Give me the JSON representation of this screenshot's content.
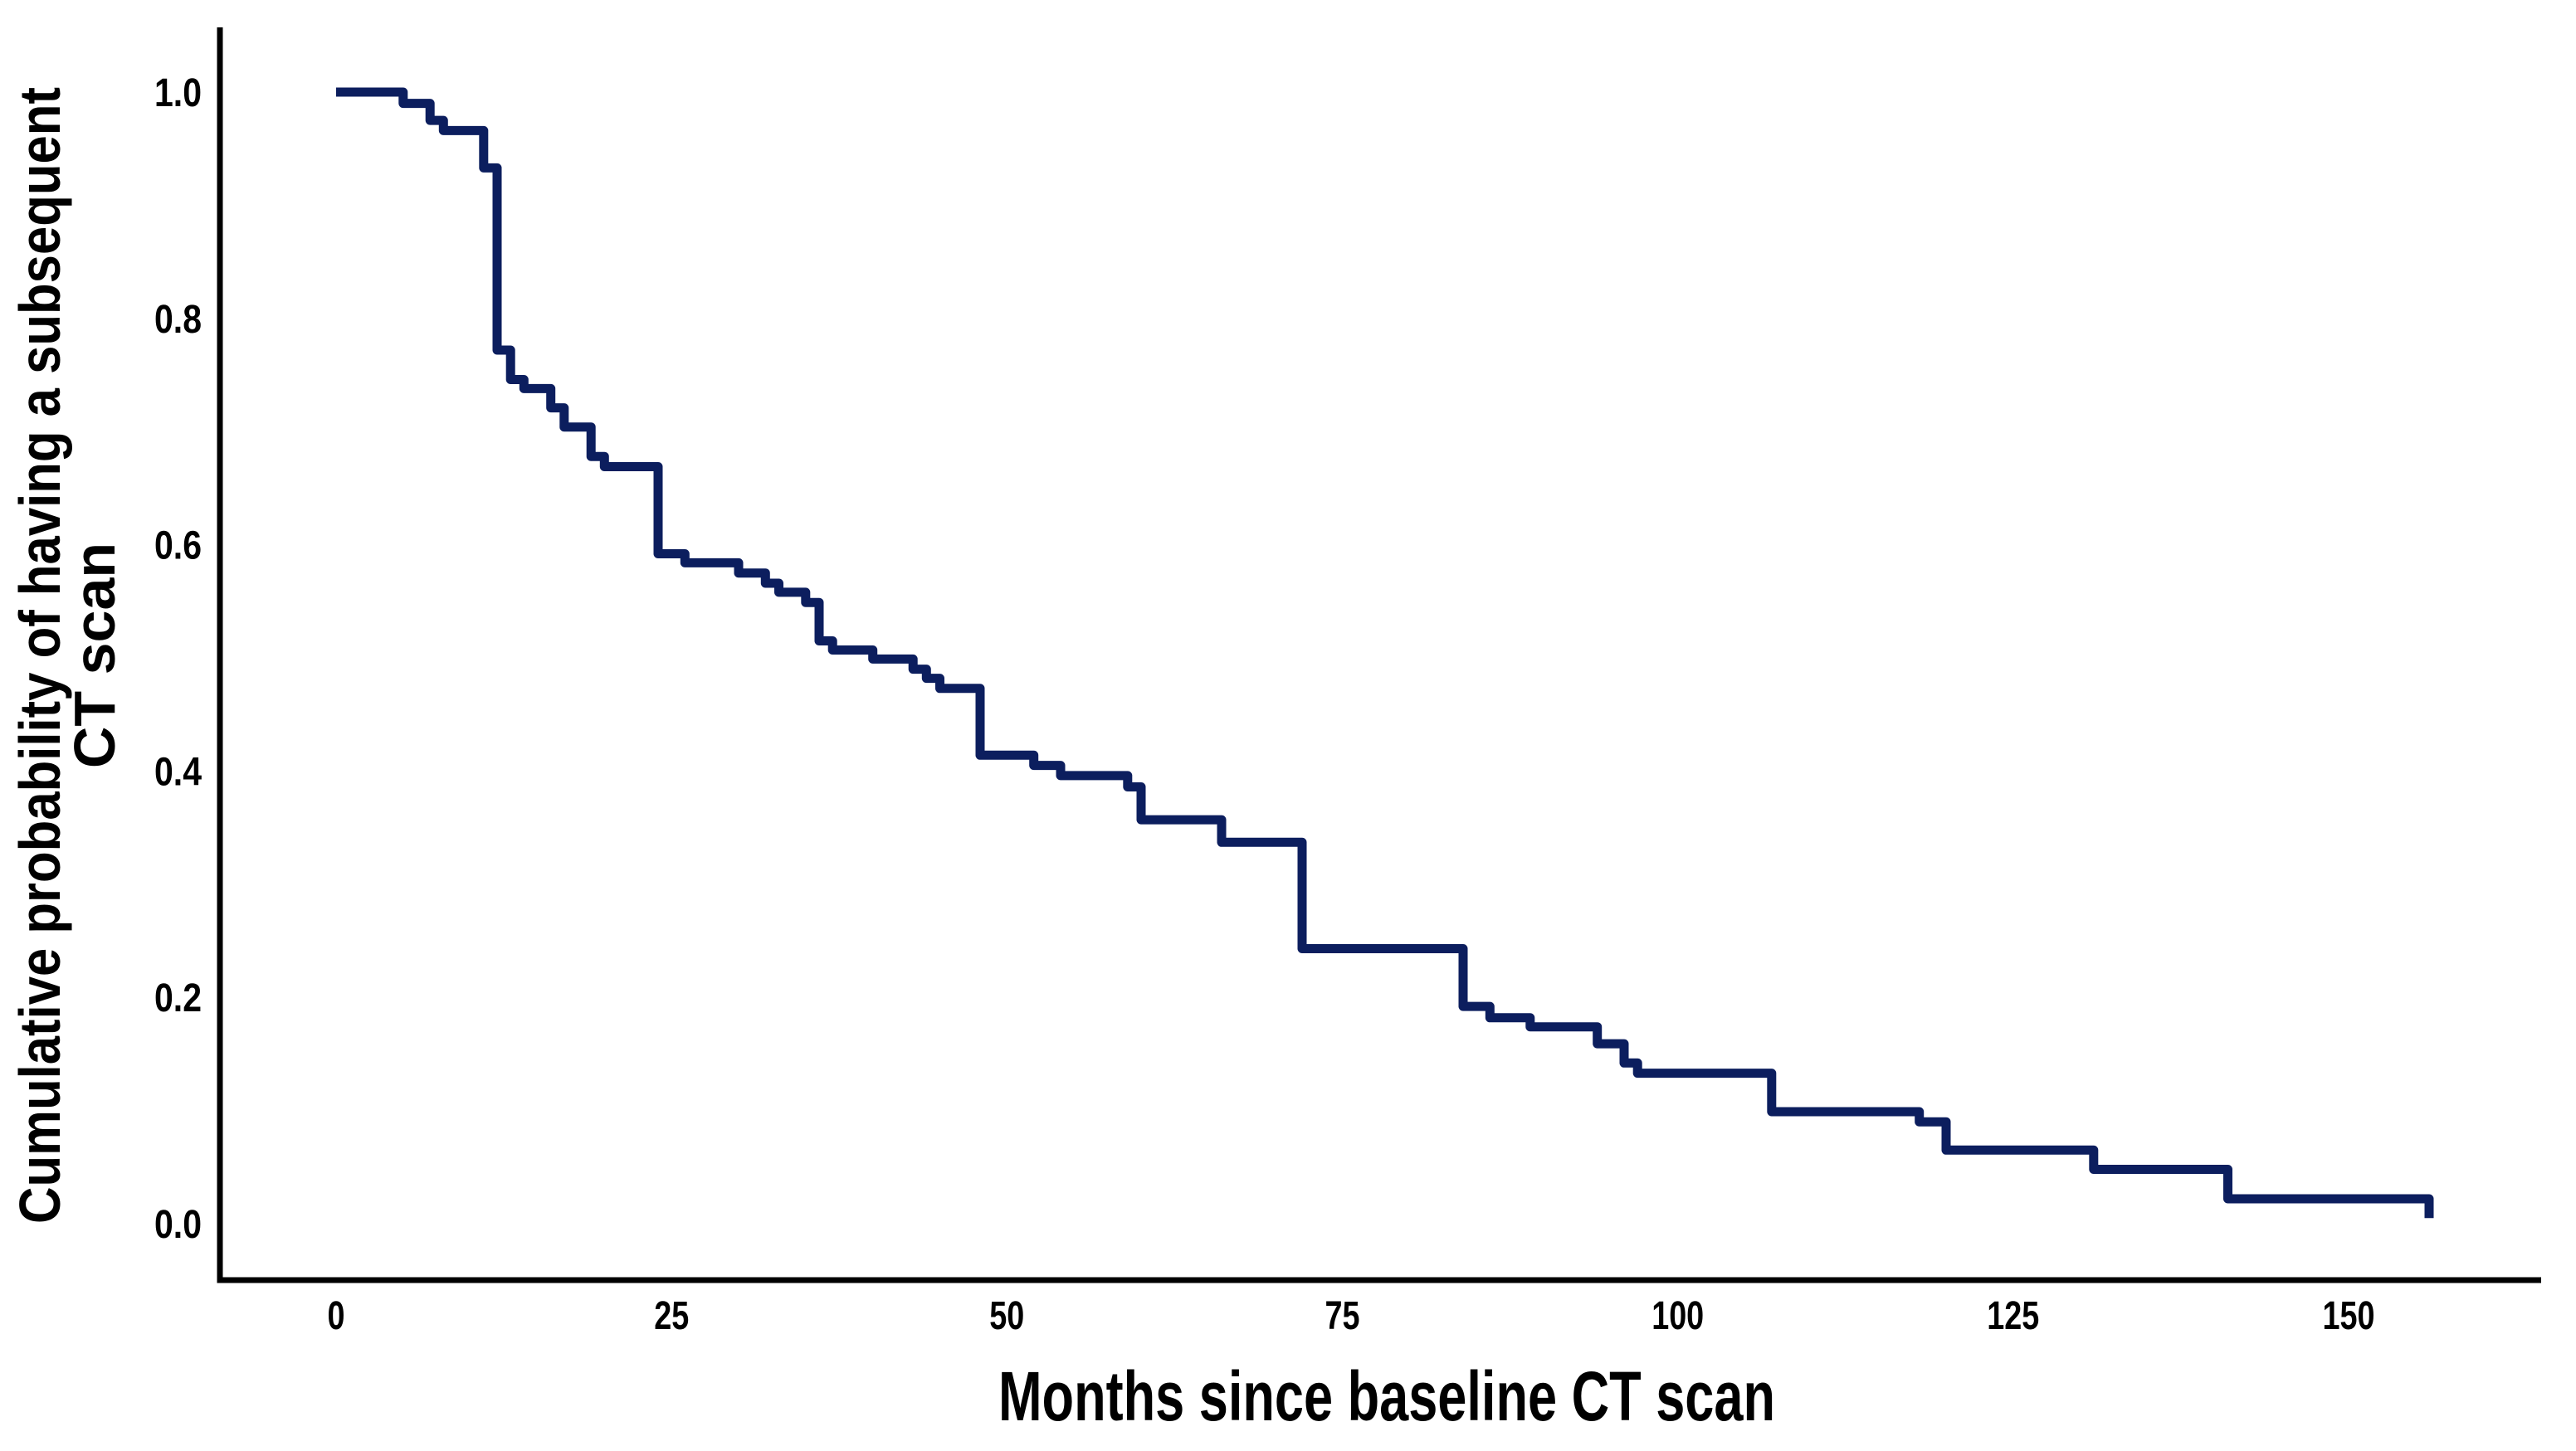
{
  "chart_data": {
    "type": "line",
    "subtype": "kaplan-meier-step-curve",
    "title": "",
    "xlabel": "Months since baseline CT scan",
    "ylabel": "Cumulative probability of having a subsequent CT scan",
    "ylabel_lines": [
      "Cumulative probability of having a subsequent",
      "CT scan"
    ],
    "x_ticks": [
      0,
      25,
      50,
      75,
      100,
      125,
      150
    ],
    "y_ticks": [
      "0.0",
      "0.2",
      "0.4",
      "0.6",
      "0.8",
      "1.0"
    ],
    "y_tick_values": [
      0.0,
      0.2,
      0.4,
      0.6,
      0.8,
      1.0
    ],
    "xlim": [
      0,
      164
    ],
    "ylim": [
      0.0,
      1.0
    ],
    "grid": false,
    "legend": null,
    "line_color": "#0c1e5e",
    "axis_color": "#000000",
    "background_color": "#ffffff",
    "series": [
      {
        "name": "Cumulative probability of having a subsequent CT scan",
        "step_points": [
          [
            0,
            1.0
          ],
          [
            5,
            0.99
          ],
          [
            7,
            0.975
          ],
          [
            8,
            0.966
          ],
          [
            11,
            0.933
          ],
          [
            12,
            0.772
          ],
          [
            13,
            0.746
          ],
          [
            14,
            0.738
          ],
          [
            16,
            0.721
          ],
          [
            17,
            0.704
          ],
          [
            19,
            0.678
          ],
          [
            20,
            0.669
          ],
          [
            24,
            0.592
          ],
          [
            26,
            0.584
          ],
          [
            30,
            0.575
          ],
          [
            32,
            0.566
          ],
          [
            33,
            0.558
          ],
          [
            35,
            0.549
          ],
          [
            36,
            0.515
          ],
          [
            37,
            0.507
          ],
          [
            40,
            0.499
          ],
          [
            43,
            0.49
          ],
          [
            44,
            0.482
          ],
          [
            45,
            0.473
          ],
          [
            48,
            0.414
          ],
          [
            52,
            0.405
          ],
          [
            54,
            0.396
          ],
          [
            59,
            0.386
          ],
          [
            60,
            0.357
          ],
          [
            66,
            0.337
          ],
          [
            72,
            0.243
          ],
          [
            84,
            0.192
          ],
          [
            86,
            0.182
          ],
          [
            89,
            0.174
          ],
          [
            94,
            0.159
          ],
          [
            96,
            0.142
          ],
          [
            97,
            0.133
          ],
          [
            107,
            0.099
          ],
          [
            118,
            0.09
          ],
          [
            120,
            0.065
          ],
          [
            131,
            0.048
          ],
          [
            141,
            0.022
          ],
          [
            156,
            0.005
          ]
        ],
        "curve_end": {
          "months": 156,
          "probability": 0.005
        }
      }
    ]
  }
}
